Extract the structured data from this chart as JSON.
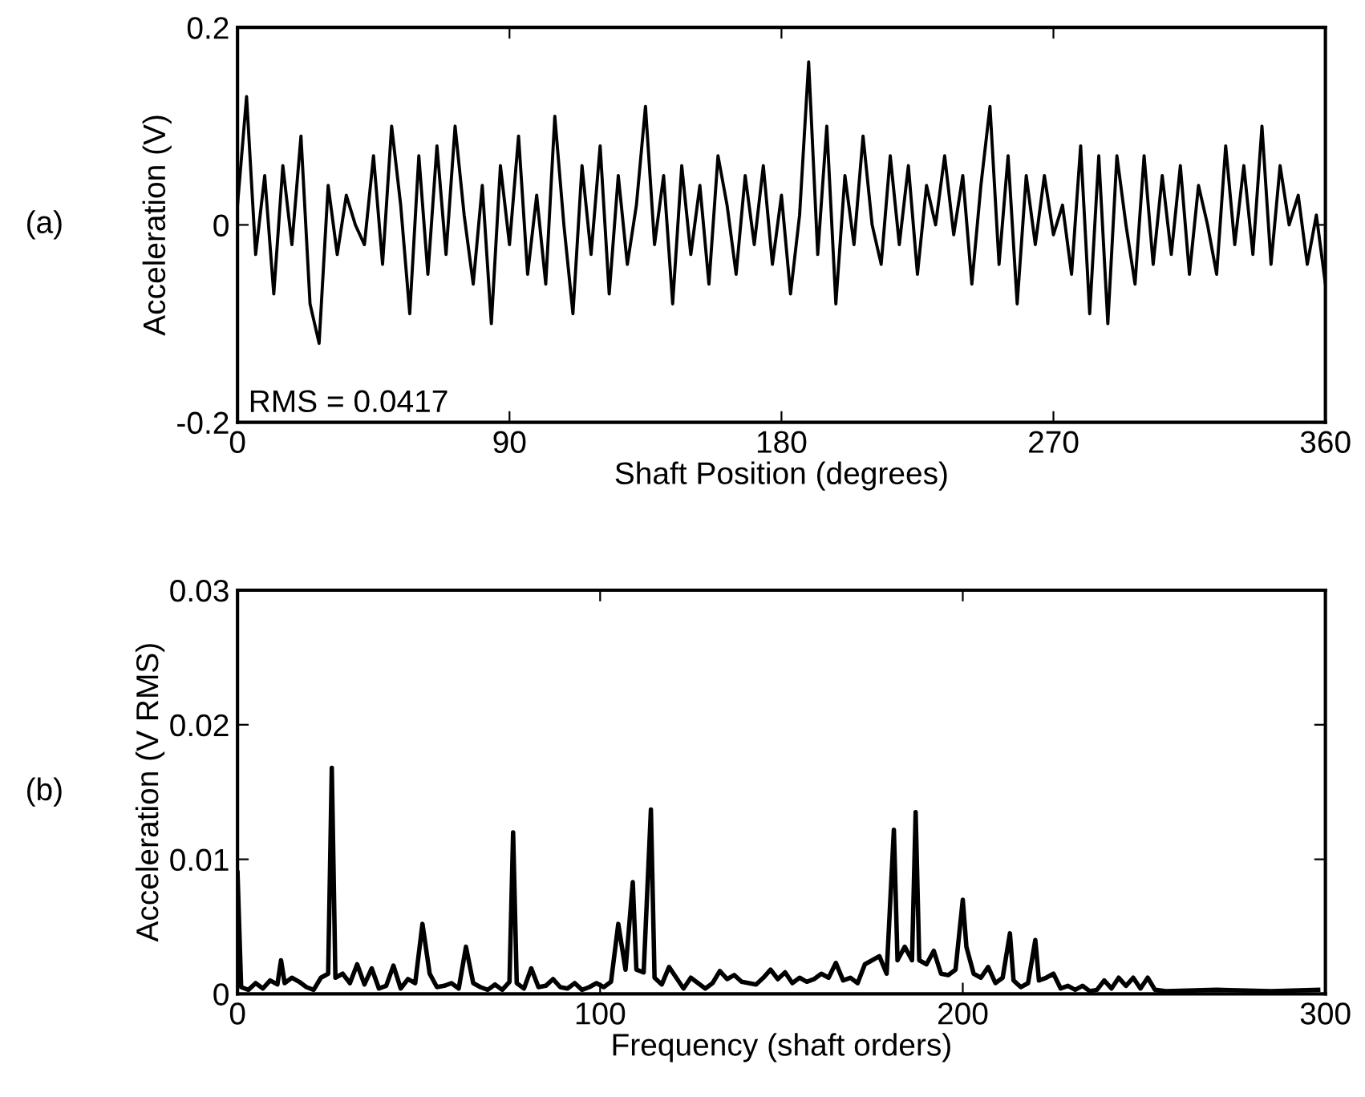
{
  "chart_data": [
    {
      "type": "line",
      "xlabel": "Shaft Position (degrees)",
      "ylabel": "Acceleration (V)",
      "annotations": [
        "(a)",
        "RMS = 0.0417"
      ],
      "xlim": [
        0,
        360
      ],
      "ylim": [
        -0.2,
        0.2
      ],
      "xticks": [
        0,
        90,
        180,
        270,
        360
      ],
      "yticks": [
        -0.2,
        0,
        0.2
      ],
      "grid": false,
      "legend": false,
      "series": [
        {
          "color": "#000000",
          "x": [
            0,
            3,
            6,
            9,
            12,
            15,
            18,
            21,
            24,
            27,
            30,
            33,
            36,
            39,
            42,
            45,
            48,
            51,
            54,
            57,
            60,
            63,
            66,
            69,
            72,
            75,
            78,
            81,
            84,
            87,
            90,
            93,
            96,
            99,
            102,
            105,
            108,
            111,
            114,
            117,
            120,
            123,
            126,
            129,
            132,
            135,
            138,
            141,
            144,
            147,
            150,
            153,
            156,
            159,
            162,
            165,
            168,
            171,
            174,
            177,
            180,
            183,
            186,
            189,
            192,
            195,
            198,
            201,
            204,
            207,
            210,
            213,
            216,
            219,
            222,
            225,
            228,
            231,
            234,
            237,
            240,
            243,
            246,
            249,
            252,
            255,
            258,
            261,
            264,
            267,
            270,
            273,
            276,
            279,
            282,
            285,
            288,
            291,
            294,
            297,
            300,
            303,
            306,
            309,
            312,
            315,
            318,
            321,
            324,
            327,
            330,
            333,
            336,
            339,
            342,
            345,
            348,
            351,
            354,
            357,
            360
          ],
          "values": [
            0.02,
            0.13,
            -0.03,
            0.05,
            -0.07,
            0.06,
            -0.02,
            0.09,
            -0.08,
            -0.12,
            0.04,
            -0.03,
            0.03,
            0.0,
            -0.02,
            0.07,
            -0.04,
            0.1,
            0.02,
            -0.09,
            0.07,
            -0.05,
            0.08,
            -0.03,
            0.1,
            0.01,
            -0.06,
            0.04,
            -0.1,
            0.06,
            -0.02,
            0.09,
            -0.05,
            0.03,
            -0.06,
            0.11,
            0.0,
            -0.09,
            0.06,
            -0.03,
            0.08,
            -0.07,
            0.05,
            -0.04,
            0.02,
            0.12,
            -0.02,
            0.05,
            -0.08,
            0.06,
            -0.03,
            0.04,
            -0.06,
            0.07,
            0.02,
            -0.05,
            0.05,
            -0.02,
            0.06,
            -0.04,
            0.03,
            -0.07,
            0.01,
            0.165,
            -0.03,
            0.1,
            -0.08,
            0.05,
            -0.02,
            0.09,
            0.0,
            -0.04,
            0.07,
            -0.02,
            0.06,
            -0.05,
            0.04,
            0.0,
            0.07,
            -0.01,
            0.05,
            -0.06,
            0.04,
            0.12,
            -0.04,
            0.07,
            -0.08,
            0.05,
            -0.02,
            0.05,
            -0.01,
            0.02,
            -0.05,
            0.08,
            -0.09,
            0.07,
            -0.1,
            0.07,
            0.0,
            -0.06,
            0.07,
            -0.04,
            0.05,
            -0.03,
            0.06,
            -0.05,
            0.04,
            0.0,
            -0.05,
            0.08,
            -0.02,
            0.06,
            -0.03,
            0.1,
            -0.04,
            0.06,
            0.0,
            0.03,
            -0.04,
            0.01,
            -0.06
          ]
        }
      ]
    },
    {
      "type": "line",
      "xlabel": "Frequency (shaft orders)",
      "ylabel": "Acceleration (V RMS)",
      "annotations": [
        "(b)"
      ],
      "xlim": [
        0,
        300
      ],
      "ylim": [
        0,
        0.03
      ],
      "xticks": [
        0,
        100,
        200,
        300
      ],
      "yticks": [
        0,
        0.01,
        0.02,
        0.03
      ],
      "grid": false,
      "legend": false,
      "series": [
        {
          "color": "#000000",
          "x": [
            0,
            1,
            3,
            5,
            7,
            9,
            11,
            12,
            13,
            15,
            17,
            19,
            21,
            23,
            25,
            26,
            27,
            29,
            31,
            33,
            35,
            37,
            39,
            41,
            43,
            45,
            47,
            49,
            51,
            53,
            55,
            57,
            59,
            61,
            63,
            65,
            67,
            69,
            71,
            73,
            75,
            76,
            77,
            79,
            81,
            83,
            85,
            87,
            89,
            91,
            93,
            95,
            97,
            99,
            101,
            103,
            105,
            107,
            109,
            110,
            112,
            114,
            115,
            117,
            119,
            121,
            123,
            125,
            127,
            129,
            131,
            133,
            135,
            137,
            139,
            141,
            143,
            145,
            147,
            149,
            151,
            153,
            155,
            157,
            159,
            161,
            163,
            165,
            167,
            169,
            171,
            173,
            175,
            177,
            179,
            181,
            182,
            184,
            186,
            187,
            188,
            190,
            192,
            194,
            196,
            198,
            200,
            201,
            203,
            205,
            207,
            209,
            211,
            213,
            214,
            216,
            218,
            220,
            221,
            223,
            225,
            227,
            229,
            231,
            233,
            235,
            237,
            239,
            241,
            243,
            245,
            247,
            249,
            251,
            253,
            256,
            270,
            285,
            298
          ],
          "values": [
            0.009,
            0.0005,
            0.0003,
            0.0008,
            0.0004,
            0.001,
            0.0007,
            0.0025,
            0.0008,
            0.0012,
            0.0009,
            0.0005,
            0.0003,
            0.0012,
            0.0015,
            0.0168,
            0.0012,
            0.0015,
            0.0008,
            0.0022,
            0.0007,
            0.0019,
            0.0004,
            0.0006,
            0.0021,
            0.0004,
            0.0011,
            0.0008,
            0.0052,
            0.0015,
            0.0005,
            0.0006,
            0.0008,
            0.0004,
            0.0035,
            0.0008,
            0.0005,
            0.0003,
            0.0007,
            0.0003,
            0.0009,
            0.012,
            0.0008,
            0.0004,
            0.0019,
            0.0005,
            0.0006,
            0.0011,
            0.0005,
            0.0004,
            0.0008,
            0.0003,
            0.0005,
            0.0008,
            0.0005,
            0.0009,
            0.0052,
            0.0018,
            0.0083,
            0.0018,
            0.0016,
            0.0137,
            0.0012,
            0.0007,
            0.002,
            0.0012,
            0.0004,
            0.0012,
            0.0008,
            0.0004,
            0.0008,
            0.0017,
            0.0011,
            0.0014,
            0.0009,
            0.0008,
            0.0007,
            0.0012,
            0.0018,
            0.0011,
            0.0016,
            0.0008,
            0.0012,
            0.0009,
            0.0011,
            0.0015,
            0.0012,
            0.0023,
            0.001,
            0.0012,
            0.0008,
            0.0022,
            0.0025,
            0.0028,
            0.0015,
            0.0122,
            0.0025,
            0.0035,
            0.0025,
            0.0135,
            0.0025,
            0.0022,
            0.0032,
            0.0015,
            0.0014,
            0.0018,
            0.007,
            0.0035,
            0.0015,
            0.0012,
            0.002,
            0.0008,
            0.0012,
            0.0045,
            0.001,
            0.0005,
            0.0008,
            0.004,
            0.001,
            0.0012,
            0.0015,
            0.0004,
            0.0006,
            0.0003,
            0.0006,
            0.0002,
            0.0003,
            0.001,
            0.0004,
            0.0012,
            0.0006,
            0.0012,
            0.0004,
            0.0012,
            0.0003,
            0.0002,
            0.0003,
            0.0002,
            0.0003
          ]
        }
      ]
    }
  ]
}
